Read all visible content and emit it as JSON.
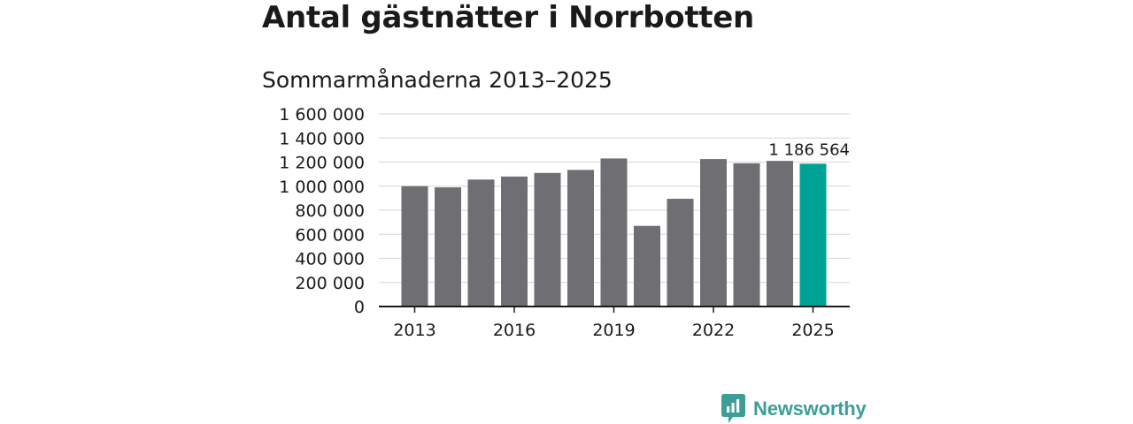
{
  "title": "Antal gästnätter i Norrbotten",
  "subtitle": "Sommarmånaderna 2013–2025",
  "brand": {
    "name": "Newsworthy",
    "icon": "bar-chart-speech-bubble-icon",
    "color": "#3d9e98"
  },
  "colors": {
    "bar": "#6e6e73",
    "highlight": "#00a295",
    "grid": "#dddddd",
    "axis": "#1a1a1a"
  },
  "chart_data": {
    "type": "bar",
    "title": "Antal gästnätter i Norrbotten",
    "subtitle": "Sommarmånaderna 2013–2025",
    "xlabel": "",
    "ylabel": "",
    "categories": [
      "2013",
      "2014",
      "2015",
      "2016",
      "2017",
      "2018",
      "2019",
      "2020",
      "2021",
      "2022",
      "2023",
      "2024",
      "2025"
    ],
    "x_tick_labels": [
      "2013",
      "2016",
      "2019",
      "2022",
      "2025"
    ],
    "values": [
      1000000,
      990000,
      1055000,
      1080000,
      1110000,
      1135000,
      1230000,
      670000,
      895000,
      1225000,
      1190000,
      1210000,
      1186564
    ],
    "highlight_index": 12,
    "annotation": "1 186 564",
    "ylim": [
      0,
      1600000
    ],
    "y_ticks": [
      0,
      200000,
      400000,
      600000,
      800000,
      1000000,
      1200000,
      1400000,
      1600000
    ],
    "y_tick_labels": [
      "0",
      "200 000",
      "400 000",
      "600 000",
      "800 000",
      "1 000 000",
      "1 200 000",
      "1 400 000",
      "1 600 000"
    ],
    "grid": true,
    "legend": "none"
  }
}
